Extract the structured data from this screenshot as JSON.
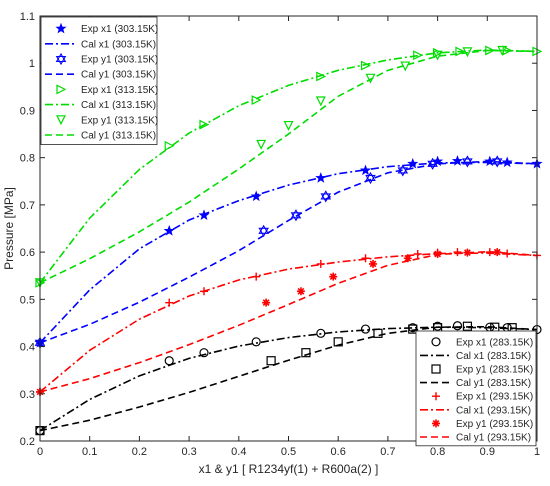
{
  "chart_data": {
    "type": "line",
    "title": "",
    "xlabel": "x1 & y1 [ R1234yf(1) + R600a(2) ]",
    "ylabel": "Pressure [MPa]",
    "xlim": [
      0,
      1
    ],
    "ylim": [
      0.2,
      1.1
    ],
    "xticks": [
      "0",
      "0.1",
      "0.2",
      "0.3",
      "0.4",
      "0.5",
      "0.6",
      "0.7",
      "0.8",
      "0.9",
      "1"
    ],
    "yticks": [
      "0.2",
      "0.3",
      "0.4",
      "0.5",
      "0.6",
      "0.7",
      "0.8",
      "0.9",
      "1",
      "1.1"
    ],
    "grid": false,
    "legends": [
      {
        "placement": "top-left",
        "entries": [
          {
            "label": "Exp x1 (303.15K)",
            "series": 0
          },
          {
            "label": "Cal x1 (303.15K)",
            "series": 1
          },
          {
            "label": "Exp y1 (303.15K)",
            "series": 2
          },
          {
            "label": "Cal y1 (303.15K)",
            "series": 3
          },
          {
            "label": "Exp x1 (313.15K)",
            "series": 4
          },
          {
            "label": "Cal x1 (313.15K)",
            "series": 5
          },
          {
            "label": "Exp y1 (313.15K)",
            "series": 6
          },
          {
            "label": "Cal y1 (313.15K)",
            "series": 7
          }
        ]
      },
      {
        "placement": "bottom-right",
        "entries": [
          {
            "label": "Exp x1 (283.15K)",
            "series": 8
          },
          {
            "label": "Cal x1 (283.15K)",
            "series": 9
          },
          {
            "label": "Exp y1 (283.15K)",
            "series": 10
          },
          {
            "label": "Cal y1 (283.15K)",
            "series": 11
          },
          {
            "label": "Exp x1 (293.15K)",
            "series": 12
          },
          {
            "label": "Cal x1 (293.15K)",
            "series": 13
          },
          {
            "label": "Exp y1 (293.15K)",
            "series": 14
          },
          {
            "label": "Cal y1 (293.15K)",
            "series": 15
          }
        ]
      }
    ],
    "series": [
      {
        "name": "Exp x1 (303.15K)",
        "kind": "points",
        "marker": "star-filled",
        "color": "#0000ff",
        "x": [
          0,
          0.26,
          0.33,
          0.435,
          0.565,
          0.655,
          0.75,
          0.8,
          0.84,
          0.905,
          0.94,
          1.0
        ],
        "y": [
          0.408,
          0.645,
          0.678,
          0.718,
          0.757,
          0.773,
          0.787,
          0.792,
          0.793,
          0.792,
          0.79,
          0.787
        ]
      },
      {
        "name": "Cal x1 (303.15K)",
        "kind": "line",
        "dash": "dashdot",
        "color": "#0000ff",
        "x": [
          0,
          0.1,
          0.2,
          0.3,
          0.4,
          0.5,
          0.6,
          0.7,
          0.8,
          0.9,
          1.0
        ],
        "y": [
          0.408,
          0.52,
          0.607,
          0.668,
          0.709,
          0.742,
          0.766,
          0.781,
          0.789,
          0.79,
          0.787
        ]
      },
      {
        "name": "Exp y1 (303.15K)",
        "kind": "points",
        "marker": "star-open",
        "color": "#0000ff",
        "x": [
          0,
          0.45,
          0.515,
          0.575,
          0.665,
          0.73,
          0.79,
          0.86,
          0.92
        ],
        "y": [
          0.408,
          0.645,
          0.678,
          0.718,
          0.757,
          0.773,
          0.787,
          0.792,
          0.792
        ]
      },
      {
        "name": "Cal y1 (303.15K)",
        "kind": "line",
        "dash": "dash",
        "color": "#0000ff",
        "x": [
          0,
          0.1,
          0.2,
          0.3,
          0.4,
          0.5,
          0.6,
          0.7,
          0.8,
          0.9,
          1.0
        ],
        "y": [
          0.408,
          0.447,
          0.494,
          0.547,
          0.603,
          0.667,
          0.727,
          0.768,
          0.787,
          0.792,
          0.787
        ]
      },
      {
        "name": "Exp x1 (313.15K)",
        "kind": "points",
        "marker": "triangle-right",
        "color": "#00dd00",
        "x": [
          0,
          0.26,
          0.33,
          0.435,
          0.565,
          0.655,
          0.76,
          0.8,
          0.845,
          0.905,
          0.94,
          1.0
        ],
        "y": [
          0.535,
          0.825,
          0.87,
          0.922,
          0.972,
          0.995,
          1.017,
          1.022,
          1.025,
          1.027,
          1.027,
          1.025
        ]
      },
      {
        "name": "Cal x1 (313.15K)",
        "kind": "line",
        "dash": "dashdot",
        "color": "#00dd00",
        "x": [
          0,
          0.1,
          0.2,
          0.3,
          0.4,
          0.5,
          0.6,
          0.7,
          0.8,
          0.9,
          1.0
        ],
        "y": [
          0.535,
          0.672,
          0.775,
          0.852,
          0.91,
          0.953,
          0.985,
          1.007,
          1.022,
          1.028,
          1.025
        ]
      },
      {
        "name": "Exp y1 (313.15K)",
        "kind": "points",
        "marker": "triangle-down",
        "color": "#00dd00",
        "x": [
          0,
          0.445,
          0.5,
          0.565,
          0.665,
          0.735,
          0.8,
          0.86,
          0.93
        ],
        "y": [
          0.535,
          0.828,
          0.868,
          0.92,
          0.968,
          0.994,
          1.017,
          1.024,
          1.027
        ]
      },
      {
        "name": "Cal y1 (313.15K)",
        "kind": "line",
        "dash": "dash",
        "color": "#00dd00",
        "x": [
          0,
          0.1,
          0.2,
          0.3,
          0.4,
          0.5,
          0.6,
          0.7,
          0.8,
          0.9,
          1.0
        ],
        "y": [
          0.535,
          0.586,
          0.643,
          0.706,
          0.776,
          0.85,
          0.93,
          0.985,
          1.015,
          1.027,
          1.025
        ]
      },
      {
        "name": "Exp x1 (283.15K)",
        "kind": "points",
        "marker": "circle-open",
        "color": "#000000",
        "x": [
          0,
          0.26,
          0.33,
          0.435,
          0.565,
          0.655,
          0.75,
          0.8,
          0.84,
          0.905,
          0.94,
          1.0
        ],
        "y": [
          0.222,
          0.37,
          0.387,
          0.41,
          0.428,
          0.437,
          0.44,
          0.443,
          0.444,
          0.441,
          0.44,
          0.436
        ]
      },
      {
        "name": "Cal x1 (283.15K)",
        "kind": "line",
        "dash": "dashdot",
        "color": "#000000",
        "x": [
          0,
          0.1,
          0.2,
          0.3,
          0.4,
          0.5,
          0.6,
          0.7,
          0.8,
          0.9,
          1.0
        ],
        "y": [
          0.222,
          0.288,
          0.338,
          0.375,
          0.401,
          0.419,
          0.431,
          0.438,
          0.441,
          0.44,
          0.436
        ]
      },
      {
        "name": "Exp y1 (283.15K)",
        "kind": "points",
        "marker": "square-open",
        "color": "#000000",
        "x": [
          0,
          0.465,
          0.535,
          0.6,
          0.68,
          0.75,
          0.8,
          0.86,
          0.915,
          0.95
        ],
        "y": [
          0.222,
          0.37,
          0.387,
          0.41,
          0.428,
          0.437,
          0.44,
          0.443,
          0.441,
          0.44
        ]
      },
      {
        "name": "Cal y1 (283.15K)",
        "kind": "line",
        "dash": "dash",
        "color": "#000000",
        "x": [
          0,
          0.1,
          0.2,
          0.3,
          0.4,
          0.5,
          0.6,
          0.7,
          0.8,
          0.9,
          1.0
        ],
        "y": [
          0.222,
          0.244,
          0.272,
          0.303,
          0.337,
          0.371,
          0.403,
          0.428,
          0.441,
          0.442,
          0.436
        ]
      },
      {
        "name": "Exp x1 (293.15K)",
        "kind": "points",
        "marker": "plus",
        "color": "#ff0000",
        "x": [
          0,
          0.26,
          0.33,
          0.435,
          0.565,
          0.655,
          0.76,
          0.8,
          0.84,
          0.905,
          0.94,
          1.0
        ],
        "y": [
          0.304,
          0.493,
          0.517,
          0.548,
          0.575,
          0.587,
          0.596,
          0.599,
          0.6,
          0.6,
          0.597,
          0.593
        ]
      },
      {
        "name": "Cal x1 (293.15K)",
        "kind": "line",
        "dash": "dashdot",
        "color": "#ff0000",
        "x": [
          0,
          0.1,
          0.2,
          0.3,
          0.4,
          0.5,
          0.6,
          0.7,
          0.8,
          0.9,
          1.0
        ],
        "y": [
          0.304,
          0.392,
          0.458,
          0.507,
          0.541,
          0.564,
          0.579,
          0.59,
          0.597,
          0.598,
          0.593
        ]
      },
      {
        "name": "Exp y1 (293.15K)",
        "kind": "points",
        "marker": "asterisk",
        "color": "#ff0000",
        "x": [
          0,
          0.455,
          0.525,
          0.59,
          0.67,
          0.74,
          0.8,
          0.86,
          0.92
        ],
        "y": [
          0.304,
          0.493,
          0.517,
          0.548,
          0.575,
          0.587,
          0.596,
          0.599,
          0.6
        ]
      },
      {
        "name": "Cal y1 (293.15K)",
        "kind": "line",
        "dash": "dash",
        "color": "#ff0000",
        "x": [
          0,
          0.1,
          0.2,
          0.3,
          0.4,
          0.5,
          0.6,
          0.7,
          0.8,
          0.9,
          1.0
        ],
        "y": [
          0.304,
          0.332,
          0.366,
          0.404,
          0.445,
          0.489,
          0.534,
          0.572,
          0.595,
          0.601,
          0.593
        ]
      }
    ]
  }
}
